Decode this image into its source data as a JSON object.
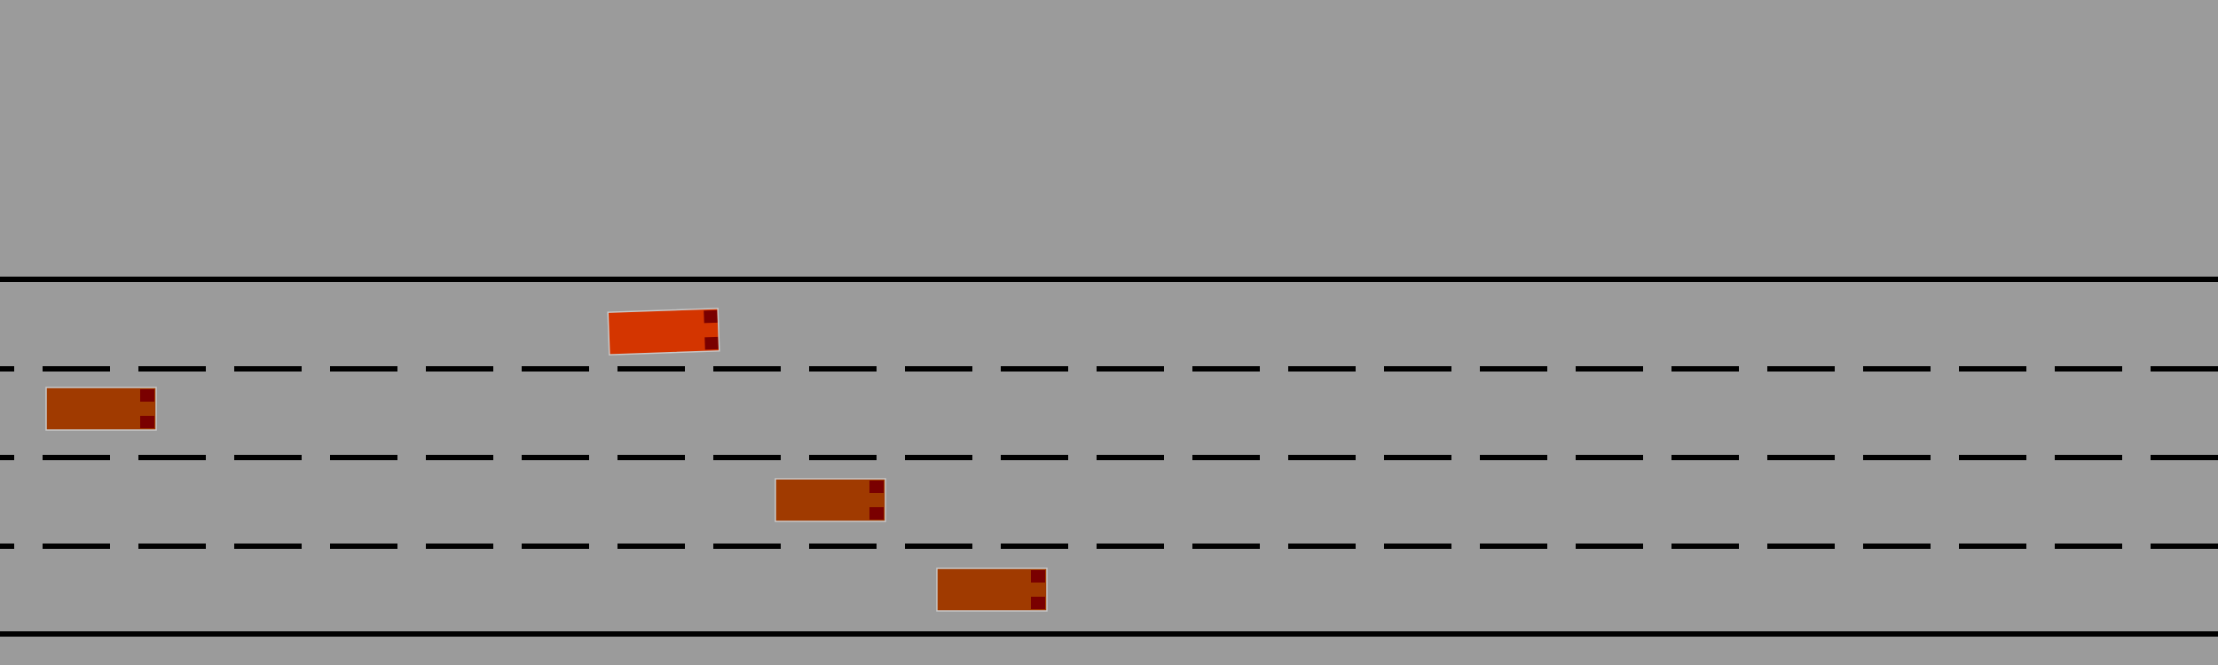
{
  "scene": {
    "type": "highway-driving-simulation",
    "lane_count": 4,
    "colors": {
      "background": "#9b9b9b",
      "lane_line": "#000000",
      "ego_vehicle": "#d43500",
      "other_vehicle": "#a03a00",
      "vehicle_light": "#7a0000",
      "vehicle_outline": "#c8c8c8"
    },
    "vehicles": [
      {
        "id": "ego",
        "role": "ego",
        "lane": 1,
        "heading_deg": -2
      },
      {
        "id": "car-1",
        "role": "other",
        "lane": 2
      },
      {
        "id": "car-2",
        "role": "other",
        "lane": 3
      },
      {
        "id": "car-3",
        "role": "other",
        "lane": 4
      }
    ]
  }
}
